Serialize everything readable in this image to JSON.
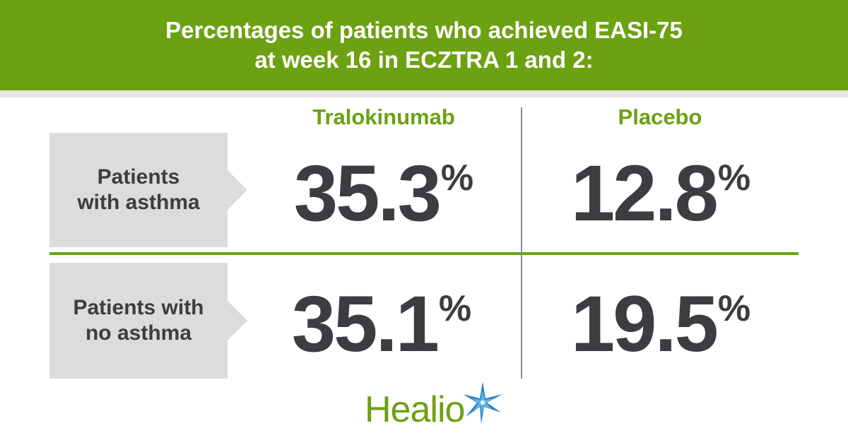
{
  "header": {
    "line1": "Percentages of patients who achieved EASI-75",
    "line2": "at week 16 in ECZTRA 1 and 2:"
  },
  "columns": [
    "Tralokinumab",
    "Placebo"
  ],
  "rows": [
    {
      "label_line1": "Patients",
      "label_line2": "with asthma",
      "values": [
        "35.3",
        "12.8"
      ]
    },
    {
      "label_line1": "Patients with",
      "label_line2": "no asthma",
      "values": [
        "35.1",
        "19.5"
      ]
    }
  ],
  "percent_sign": "%",
  "logo": {
    "text": "Healio",
    "icon": "star-burst-icon"
  },
  "colors": {
    "accent": "#6ca111",
    "text": "#3b3d40",
    "label_bg": "#dcdcdc",
    "divider": "#8a8c8f"
  },
  "chart_data": {
    "type": "table",
    "title": "Percentages of patients who achieved EASI-75 at week 16 in ECZTRA 1 and 2:",
    "columns": [
      "Tralokinumab",
      "Placebo"
    ],
    "rows": [
      "Patients with asthma",
      "Patients with no asthma"
    ],
    "values": [
      [
        35.3,
        12.8
      ],
      [
        35.1,
        19.5
      ]
    ],
    "unit": "%"
  }
}
